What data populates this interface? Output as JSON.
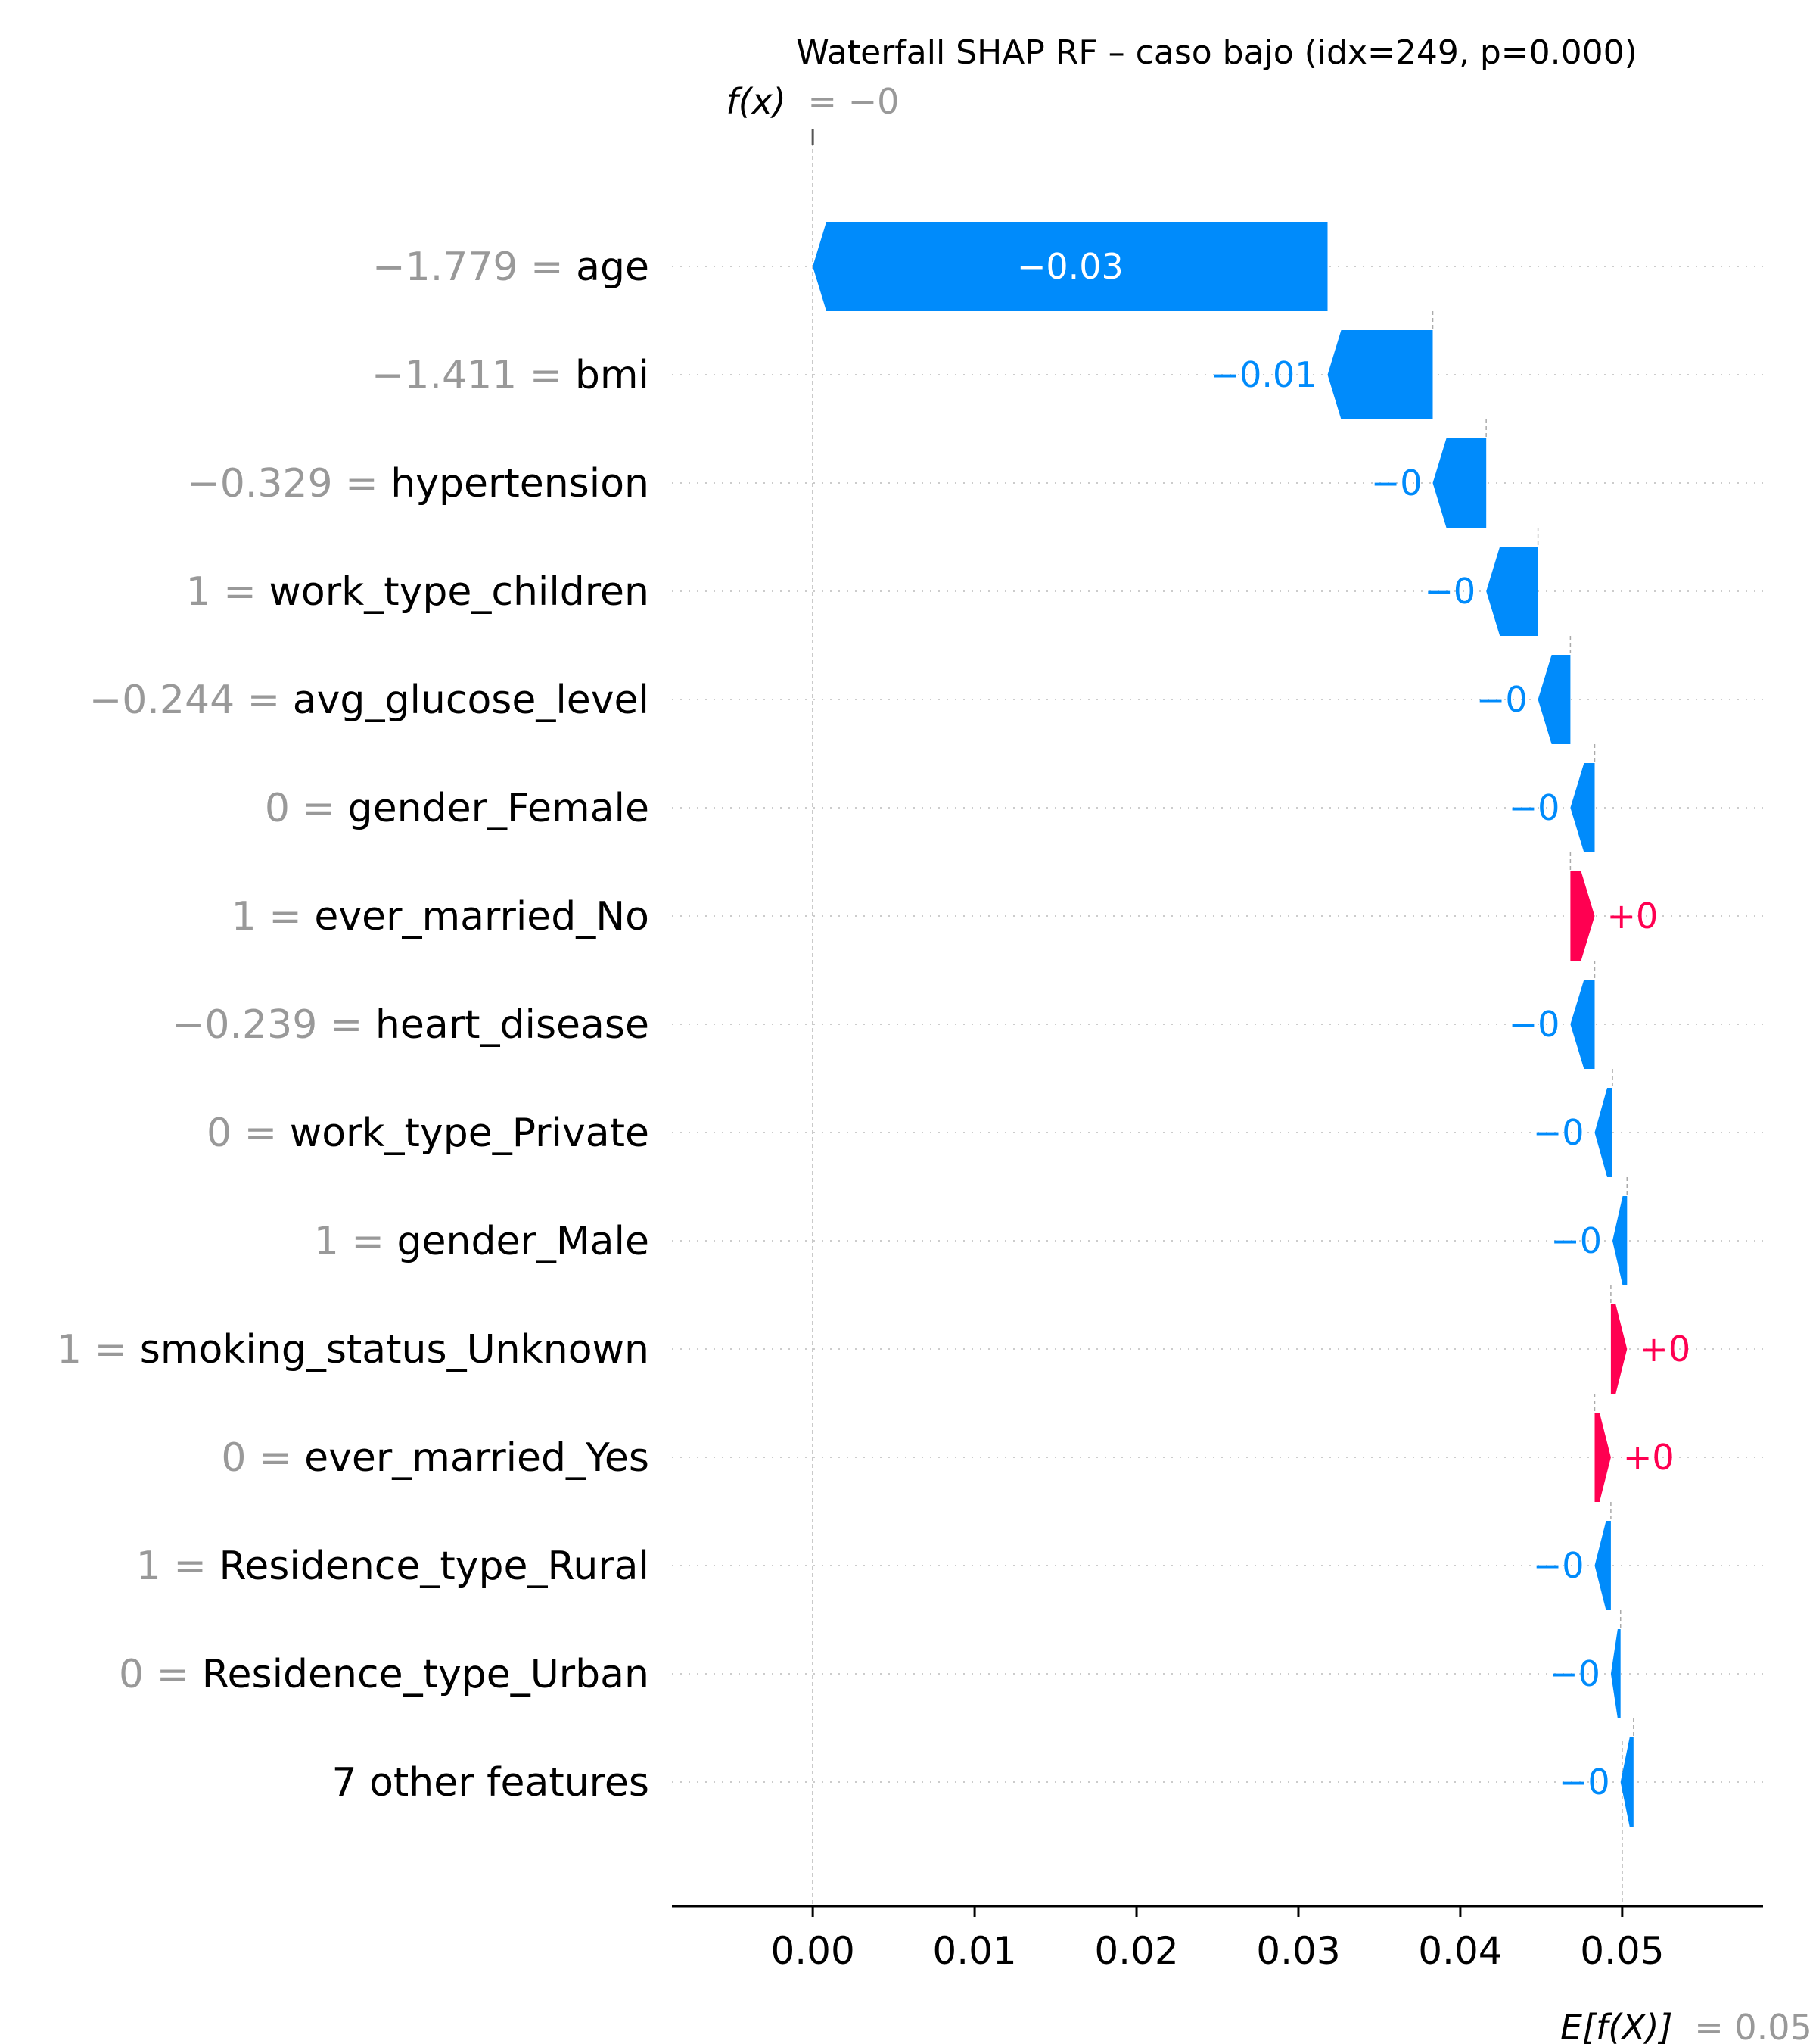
{
  "chart_data": {
    "type": "waterfall",
    "title": "Waterfall SHAP RF – caso bajo (idx=249, p=0.000)",
    "fx_label": "f(x)",
    "fx_value": "= −0",
    "ex_label": "E[f(X)]",
    "ex_value": "= 0.05",
    "base_value": 0.05,
    "final_value": 0.0,
    "xlim": [
      -0.0087,
      0.0587
    ],
    "xticks": [
      "0.00",
      "0.01",
      "0.02",
      "0.03",
      "0.04",
      "0.05"
    ],
    "xtick_values": [
      0.0,
      0.01,
      0.02,
      0.03,
      0.04,
      0.05
    ],
    "positive_color": "#ff0051",
    "negative_color": "#008bfb",
    "features": [
      {
        "value": "−1.779",
        "name": "age",
        "start": 0.0318,
        "end": 0.0,
        "label": "−0.03"
      },
      {
        "value": "−1.411",
        "name": "bmi",
        "start": 0.0383,
        "end": 0.0318,
        "label": "−0.01"
      },
      {
        "value": "−0.329",
        "name": "hypertension",
        "start": 0.0416,
        "end": 0.0383,
        "label": "−0"
      },
      {
        "value": "1",
        "name": "work_type_children",
        "start": 0.0448,
        "end": 0.0416,
        "label": "−0"
      },
      {
        "value": "−0.244",
        "name": "avg_glucose_level",
        "start": 0.0468,
        "end": 0.0448,
        "label": "−0"
      },
      {
        "value": "0",
        "name": "gender_Female",
        "start": 0.0483,
        "end": 0.0468,
        "label": "−0"
      },
      {
        "value": "1",
        "name": "ever_married_No",
        "start": 0.0468,
        "end": 0.0483,
        "label": "+0"
      },
      {
        "value": "−0.239",
        "name": "heart_disease",
        "start": 0.0483,
        "end": 0.0468,
        "label": "−0"
      },
      {
        "value": "0",
        "name": "work_type_Private",
        "start": 0.0494,
        "end": 0.0483,
        "label": "−0"
      },
      {
        "value": "1",
        "name": "gender_Male",
        "start": 0.0503,
        "end": 0.0494,
        "label": "−0"
      },
      {
        "value": "1",
        "name": "smoking_status_Unknown",
        "start": 0.0493,
        "end": 0.0503,
        "label": "+0"
      },
      {
        "value": "0",
        "name": "ever_married_Yes",
        "start": 0.0483,
        "end": 0.0493,
        "label": "+0"
      },
      {
        "value": "1",
        "name": "Residence_type_Rural",
        "start": 0.0493,
        "end": 0.0483,
        "label": "−0"
      },
      {
        "value": "0",
        "name": "Residence_type_Urban",
        "start": 0.0499,
        "end": 0.0493,
        "label": "−0"
      },
      {
        "value": "",
        "name": "7 other features",
        "start": 0.0507,
        "end": 0.0499,
        "label": "−0"
      }
    ]
  }
}
